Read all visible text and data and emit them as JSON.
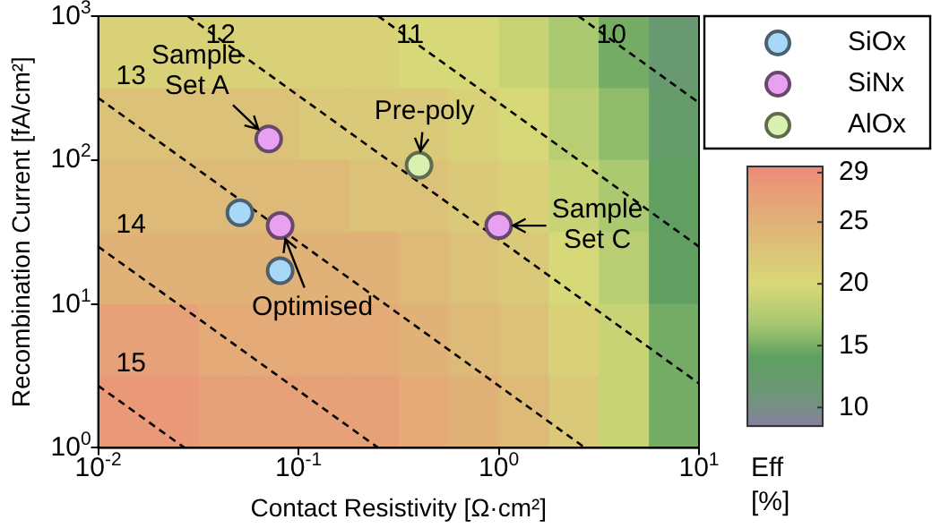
{
  "chart_data": [
    {
      "type": "heatmap",
      "categories": [
        null,
        null,
        null,
        null,
        null,
        null,
        null,
        null,
        null,
        null,
        null,
        null
      ],
      "y_categories": [
        null,
        null,
        null,
        null,
        null,
        null
      ],
      "tick_labels": false,
      "clabel": "Eff [%]",
      "clim": [
        8.5,
        29.5
      ],
      "cticks": [
        10,
        15,
        20,
        25,
        29
      ],
      "cells": [
        [
          21,
          21,
          21,
          21,
          21,
          21,
          20,
          20,
          19,
          17,
          15,
          12
        ],
        [
          23,
          23,
          23,
          23,
          22,
          22,
          22,
          21,
          20,
          18,
          16,
          13
        ],
        [
          24,
          24,
          24,
          24,
          24,
          23,
          23,
          22,
          21,
          19,
          17,
          14
        ],
        [
          25,
          25,
          25,
          25,
          25,
          25,
          24,
          23,
          22,
          20,
          18,
          14
        ],
        [
          27,
          27,
          26,
          26,
          26,
          26,
          25,
          24,
          23,
          21,
          19,
          15
        ],
        [
          28,
          28,
          27,
          27,
          27,
          27,
          26,
          25,
          24,
          22,
          19,
          15
        ]
      ]
    },
    {
      "type": "scatter",
      "xlabel": "Contact Resistivity [Ω·cm²]",
      "ylabel": "Recombination Current [fA/cm²]",
      "log": "xy",
      "xlim": [
        0.01,
        10
      ],
      "ylim": [
        1,
        1000
      ],
      "xticks": [
        {
          "value": 0.01,
          "label": "10$^{-2}$"
        },
        {
          "value": 0.1,
          "label": "10$^{-1}$"
        },
        {
          "value": 1,
          "label": "10$^{0}$"
        },
        {
          "value": 10,
          "label": "10$^{1}$"
        }
      ],
      "yticks": [
        {
          "value": 1,
          "label": "10$^{0}$"
        },
        {
          "value": 10,
          "label": "10$^{1}$"
        },
        {
          "value": 100,
          "label": "10$^{2}$"
        },
        {
          "value": 1000,
          "label": "10$^{3}$"
        }
      ],
      "legend": "top right",
      "marker": "circle",
      "grid": false,
      "series": [
        {
          "type": "line",
          "name": "15",
          "color": "#000000",
          "line_style": "dashed",
          "marker": "none",
          "x": [
            0.01,
            0.027
          ],
          "values": [
            2.7,
            1
          ]
        },
        {
          "type": "line",
          "name": "14",
          "color": "#000000",
          "line_style": "dashed",
          "marker": "none",
          "x": [
            0.01,
            0.25
          ],
          "values": [
            25,
            1
          ]
        },
        {
          "type": "line",
          "name": "13",
          "color": "#000000",
          "line_style": "dashed",
          "marker": "none",
          "x": [
            0.01,
            2.7
          ],
          "values": [
            270,
            1
          ]
        },
        {
          "type": "line",
          "name": "12",
          "color": "#000000",
          "line_style": "dashed",
          "marker": "none",
          "x": [
            0.028,
            10
          ],
          "values": [
            1000,
            2.8
          ]
        },
        {
          "type": "line",
          "name": "11",
          "color": "#000000",
          "line_style": "dashed",
          "marker": "none",
          "x": [
            0.25,
            10
          ],
          "values": [
            1000,
            25
          ]
        },
        {
          "type": "line",
          "name": "10",
          "color": "#000000",
          "line_style": "dashed",
          "marker": "none",
          "x": [
            2.5,
            10
          ],
          "values": [
            1000,
            250
          ]
        },
        {
          "name": "SiOx",
          "color": "#a8d8f8",
          "x": [
            0.051,
            0.081
          ],
          "values": [
            43,
            17
          ]
        },
        {
          "name": "SiNx",
          "color": "#e8a0f0",
          "x": [
            0.071,
            0.081,
            1.0
          ],
          "values": [
            140,
            35,
            35
          ]
        },
        {
          "name": "AlOx",
          "color": "#d8f0b0",
          "x": [
            0.4
          ],
          "values": [
            92
          ]
        }
      ],
      "annotations": [
        {
          "text": "Sample Set A",
          "x": 0.071,
          "y": 140
        },
        {
          "text": "Pre-poly",
          "x": 0.4,
          "y": 92
        },
        {
          "text": "Sample Set C",
          "x": 1.0,
          "y": 35
        },
        {
          "text": "Optimised",
          "x": 0.081,
          "y": 35
        }
      ]
    }
  ]
}
